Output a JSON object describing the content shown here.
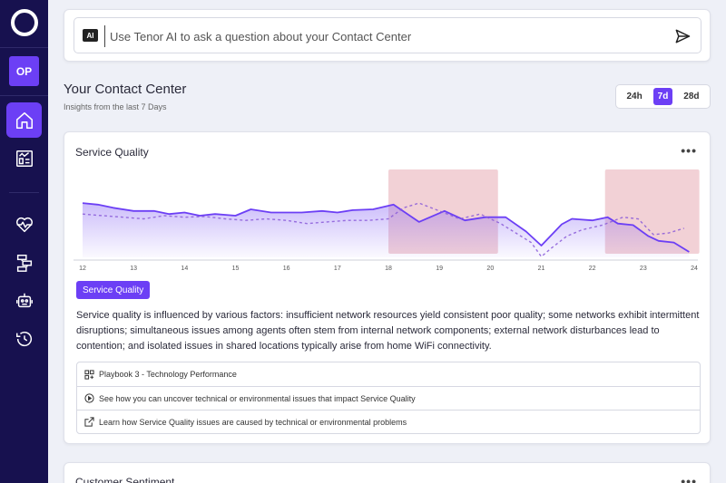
{
  "sidebar": {
    "avatar_initials": "OP",
    "nav": [
      {
        "icon": "home-icon",
        "active": true
      },
      {
        "icon": "report-icon",
        "active": false
      },
      {
        "icon": "heartbeat-icon",
        "active": false
      },
      {
        "icon": "flow-icon",
        "active": false
      },
      {
        "icon": "robot-icon",
        "active": false
      },
      {
        "icon": "history-icon",
        "active": false
      }
    ]
  },
  "search": {
    "badge": "AI",
    "placeholder": "Use Tenor AI to ask a question about your Contact Center"
  },
  "header": {
    "title": "Your Contact Center",
    "subtitle": "Insights from the last 7 Days",
    "ranges": [
      "24h",
      "7d",
      "28d"
    ],
    "active_range": "7d"
  },
  "service_quality": {
    "title": "Service Quality",
    "more": "•••",
    "chip": "Service Quality",
    "description": "Service quality is influenced by various factors: insufficient network resources yield consistent poor quality; some networks exhibit intermittent disruptions; simultaneous issues among agents often stem from internal network components; external network disturbances lead to contention; and isolated issues in shared locations typically arise from home WiFi connectivity.",
    "links": [
      {
        "icon": "grid-icon",
        "label": "Playbook 3 - Technology Performance"
      },
      {
        "icon": "play-circle-icon",
        "label": "See how you can uncover technical or environmental issues that impact Service Quality"
      },
      {
        "icon": "external-link-icon",
        "label": "Learn how Service Quality issues are caused by technical or environmental problems"
      }
    ]
  },
  "chart_data": {
    "type": "line",
    "x_ticks": [
      "12",
      "13",
      "14",
      "15",
      "16",
      "17",
      "18",
      "19",
      "20",
      "21",
      "22",
      "23",
      "24"
    ],
    "xlim": [
      12,
      24
    ],
    "ylim": [
      0,
      100
    ],
    "highlight_ranges": [
      [
        18.0,
        20.15
      ],
      [
        22.25,
        24.1
      ]
    ],
    "series": [
      {
        "style": "solid-area",
        "color": "#6c3ff5",
        "x": [
          12,
          12.3,
          12.6,
          13,
          13.4,
          13.7,
          14,
          14.3,
          14.6,
          15,
          15.3,
          15.7,
          16,
          16.3,
          16.7,
          17,
          17.3,
          17.7,
          18.1,
          18.6,
          19.1,
          19.5,
          19.9,
          20.3,
          20.7,
          21.0,
          21.4,
          21.6,
          22.0,
          22.3,
          22.5,
          22.8,
          23.1,
          23.3,
          23.6,
          23.9
        ],
        "y": [
          62,
          60,
          56,
          52,
          52,
          48,
          50,
          46,
          48,
          46,
          54,
          50,
          50,
          50,
          52,
          50,
          53,
          54,
          60,
          38,
          52,
          40,
          44,
          44,
          26,
          8,
          35,
          42,
          40,
          44,
          36,
          34,
          20,
          14,
          12,
          0
        ]
      },
      {
        "style": "dashed",
        "color": "#8a5ad8",
        "x": [
          12,
          12.4,
          12.8,
          13.2,
          13.6,
          14,
          14.4,
          14.8,
          15.2,
          15.6,
          16,
          16.4,
          16.8,
          17.2,
          17.6,
          18.0,
          18.3,
          18.6,
          19.0,
          19.4,
          19.8,
          20.2,
          20.5,
          20.8,
          21.0,
          21.2,
          21.5,
          21.8,
          22.2,
          22.6,
          22.9,
          23.2,
          23.5,
          23.8
        ],
        "y": [
          48,
          46,
          44,
          42,
          46,
          44,
          45,
          42,
          40,
          42,
          40,
          36,
          38,
          40,
          40,
          42,
          56,
          62,
          52,
          42,
          48,
          36,
          24,
          12,
          -6,
          5,
          20,
          28,
          34,
          44,
          42,
          22,
          24,
          30
        ]
      }
    ]
  },
  "customer_sentiment": {
    "title": "Customer Sentiment",
    "more": "•••"
  }
}
